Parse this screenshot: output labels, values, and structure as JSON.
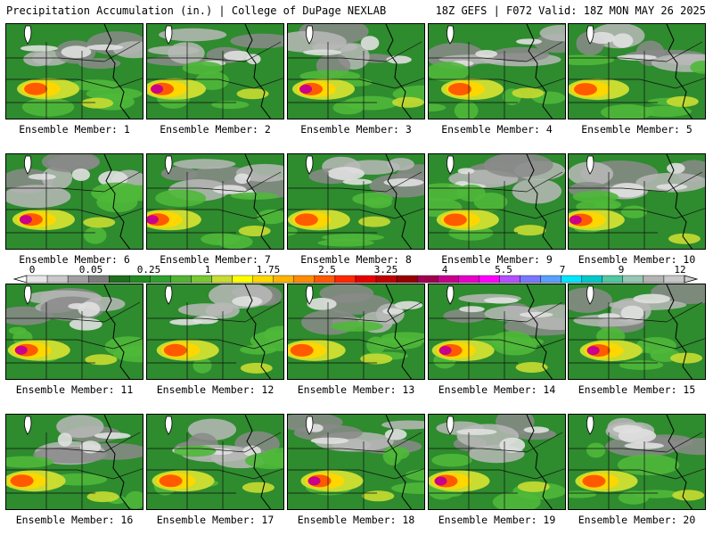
{
  "header": {
    "title": "Precipitation Accumulation (in.) | College of DuPage NEXLAB",
    "run_info": "18Z GEFS | F072 Valid: 18Z MON MAY 26 2025"
  },
  "panels": [
    {
      "label": "Ensemble Member: 1"
    },
    {
      "label": "Ensemble Member: 2"
    },
    {
      "label": "Ensemble Member: 3"
    },
    {
      "label": "Ensemble Member: 4"
    },
    {
      "label": "Ensemble Member: 5"
    },
    {
      "label": "Ensemble Member: 6"
    },
    {
      "label": "Ensemble Member: 7"
    },
    {
      "label": "Ensemble Member: 8"
    },
    {
      "label": "Ensemble Member: 9"
    },
    {
      "label": "Ensemble Member: 10"
    },
    {
      "label": "Ensemble Member: 11"
    },
    {
      "label": "Ensemble Member: 12"
    },
    {
      "label": "Ensemble Member: 13"
    },
    {
      "label": "Ensemble Member: 14"
    },
    {
      "label": "Ensemble Member: 15"
    },
    {
      "label": "Ensemble Member: 16"
    },
    {
      "label": "Ensemble Member: 17"
    },
    {
      "label": "Ensemble Member: 18"
    },
    {
      "label": "Ensemble Member: 19"
    },
    {
      "label": "Ensemble Member: 20"
    }
  ],
  "colorbar": {
    "tick_labels": [
      "0",
      "0.05",
      "0.25",
      "1",
      "1.75",
      "2.5",
      "3.25",
      "4",
      "5.5",
      "7",
      "9",
      "12"
    ],
    "colors": [
      "#e6e6e6",
      "#c8c8c8",
      "#a0a0a0",
      "#7d7d7d",
      "#1e6e1e",
      "#228b22",
      "#2ea02e",
      "#50b432",
      "#78c832",
      "#c8dc32",
      "#ffff00",
      "#ffd700",
      "#ffb400",
      "#ff8c00",
      "#ff5a00",
      "#ff2800",
      "#e60000",
      "#be0000",
      "#960000",
      "#a00050",
      "#c8008c",
      "#e600c8",
      "#ff00ff",
      "#b450ff",
      "#7878ff",
      "#5aa0ff",
      "#00e6ff",
      "#00c8c8",
      "#50c8a0",
      "#96c8b4",
      "#b4b4b4",
      "#c8c8c8"
    ]
  }
}
